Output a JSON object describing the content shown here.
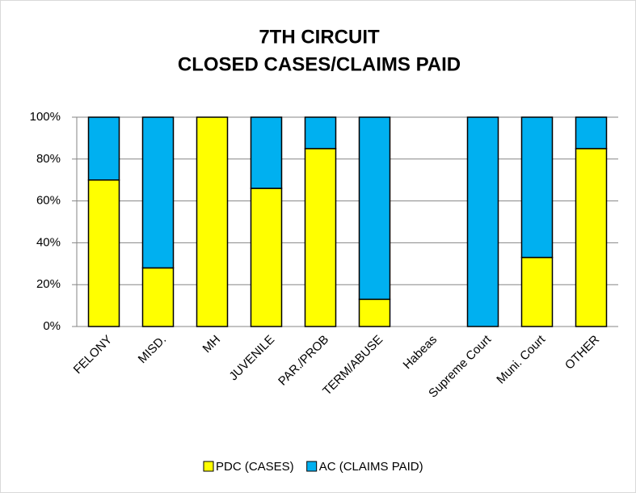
{
  "chart_data": {
    "type": "stacked_bar",
    "title": [
      "7TH CIRCUIT",
      "CLOSED CASES/CLAIMS PAID"
    ],
    "categories": [
      "FELONY",
      "MISD.",
      "MH",
      "JUVENILE",
      "PAR./PROB",
      "TERM/ABUSE",
      "Habeas",
      "Supreme Court",
      "Muni. Court",
      "OTHER"
    ],
    "series": [
      {
        "name": "PDC (CASES)",
        "color": "#ffff00",
        "values": [
          70,
          28,
          100,
          66,
          85,
          13,
          0,
          0,
          33,
          85
        ]
      },
      {
        "name": "AC (CLAIMS PAID)",
        "color": "#00b0f0",
        "values": [
          30,
          72,
          0,
          34,
          15,
          87,
          0,
          100,
          67,
          15
        ]
      }
    ],
    "ylim": [
      0,
      100
    ],
    "yticks": [
      {
        "value": 0,
        "label": "0%"
      },
      {
        "value": 20,
        "label": "20%"
      },
      {
        "value": 40,
        "label": "40%"
      },
      {
        "value": 60,
        "label": "60%"
      },
      {
        "value": 80,
        "label": "80%"
      },
      {
        "value": 100,
        "label": "100%"
      }
    ],
    "grid": true,
    "legend": "bottom"
  }
}
